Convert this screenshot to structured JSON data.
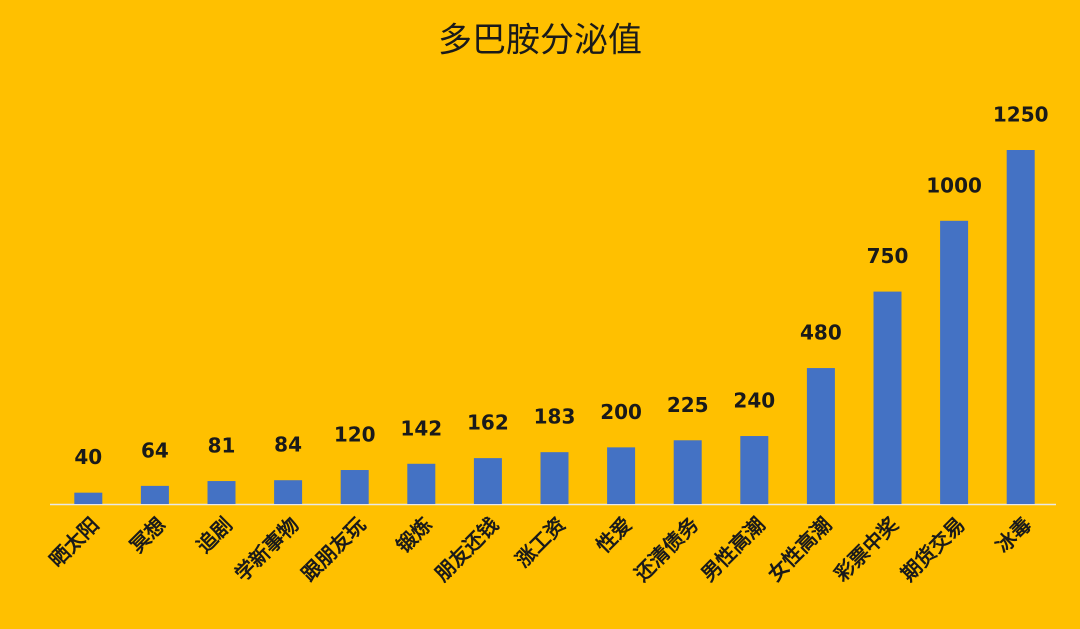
{
  "chart_data": {
    "type": "bar",
    "title": "多巴胺分泌值",
    "categories": [
      "晒太阳",
      "冥想",
      "追剧",
      "学新事物",
      "跟朋友玩",
      "锻炼",
      "朋友还钱",
      "涨工资",
      "性爱",
      "还清债务",
      "男性高潮",
      "女性高潮",
      "彩票中奖",
      "期货交易",
      "冰毒"
    ],
    "values": [
      40,
      64,
      81,
      84,
      120,
      142,
      162,
      183,
      200,
      225,
      240,
      480,
      750,
      1000,
      1250
    ],
    "color": "#4472c4",
    "background": "#ffc000"
  }
}
